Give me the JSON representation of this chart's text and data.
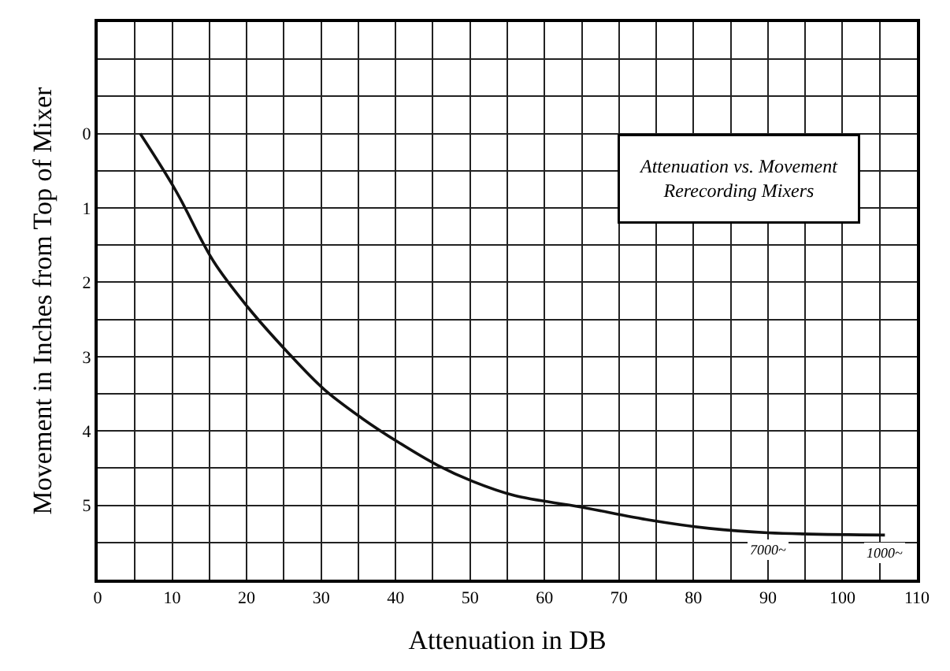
{
  "chart_data": {
    "type": "line",
    "title": "Attenuation vs. Movement\nRerecording Mixers",
    "xlabel": "Attenuation in DB",
    "ylabel": "Movement in Inches from Top of Mixer",
    "x": [
      5.7,
      10.5,
      15.5,
      20.2,
      25.4,
      30.4,
      35.5,
      40.5,
      45.6,
      50.4,
      56,
      64.7,
      74.2,
      82.1,
      90,
      105.7
    ],
    "series": [
      {
        "color": "#111111",
        "values": [
          0,
          0.77,
          1.71,
          2.34,
          2.93,
          3.44,
          3.83,
          4.16,
          4.46,
          4.68,
          4.87,
          5.02,
          5.2,
          5.31,
          5.37,
          5.4
        ]
      }
    ],
    "xlim": [
      0,
      110
    ],
    "xticks": [
      0,
      10,
      20,
      30,
      40,
      50,
      60,
      70,
      80,
      90,
      100,
      110
    ],
    "ylim": [
      6,
      -1.5
    ],
    "yticks": [
      0,
      1,
      2,
      3,
      4,
      5
    ],
    "grid": true,
    "marker": "none",
    "line_style": "solid",
    "annotations": [
      {
        "text": "7000~",
        "x": 90,
        "y": 5.37
      },
      {
        "text": "1000~",
        "x": 105.7,
        "y": 5.4
      }
    ]
  }
}
